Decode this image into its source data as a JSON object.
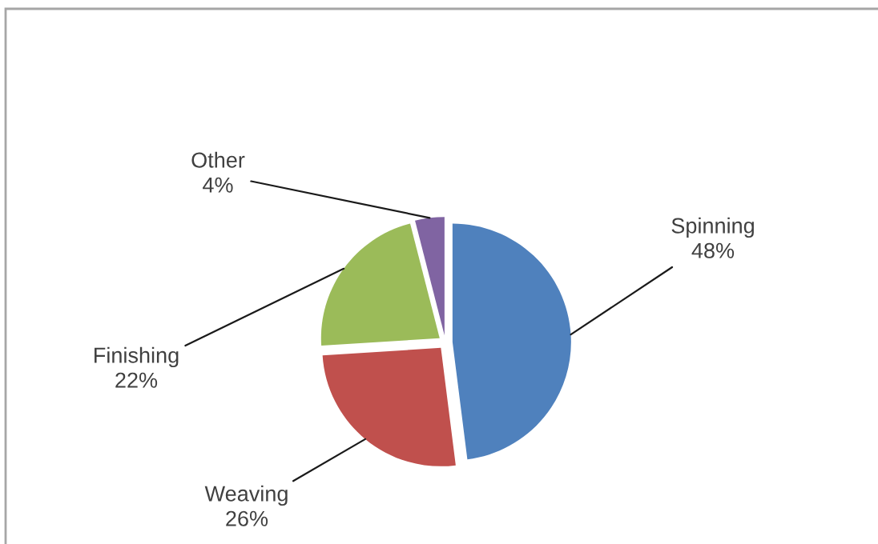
{
  "chart_data": {
    "type": "pie",
    "categories": [
      "Spinning",
      "Weaving",
      "Finishing",
      "Other"
    ],
    "values": [
      48,
      26,
      22,
      4
    ],
    "colors": [
      "#4f81bd",
      "#c0504d",
      "#9bbb59",
      "#8064a2"
    ],
    "value_labels": [
      "48%",
      "26%",
      "22%",
      "4%"
    ]
  }
}
